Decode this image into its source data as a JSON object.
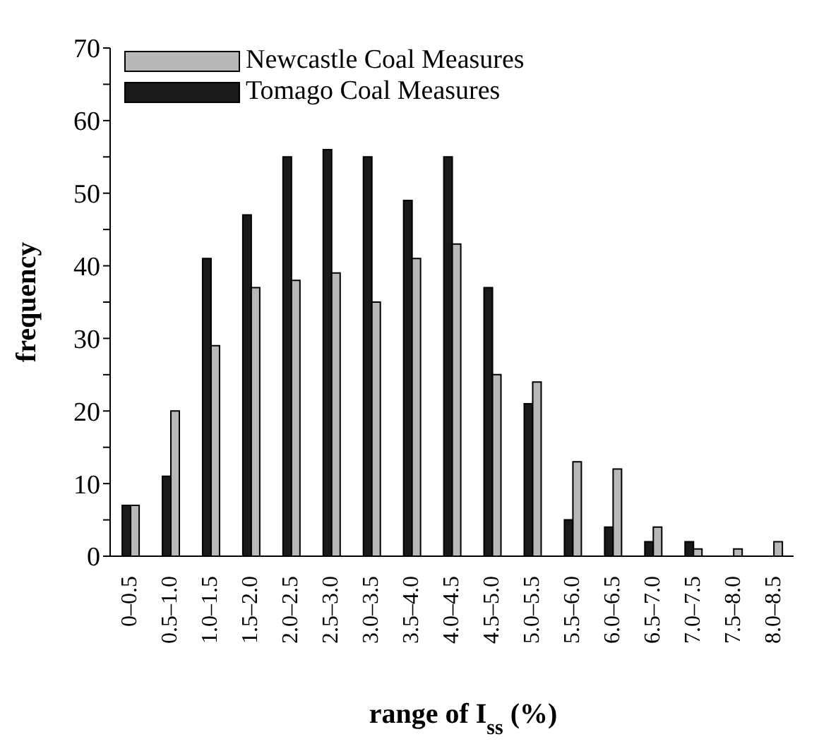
{
  "chart_data": {
    "type": "bar",
    "xlabel": "range of I$_{ss}$ (%)",
    "ylabel": "frequency",
    "categories": [
      "0–0.5",
      "0.5–1.0",
      "1.0–1.5",
      "1.5–2.0",
      "2.0–2.5",
      "2.5–3.0",
      "3.0–3.5",
      "3.5–4.0",
      "4.0–4.5",
      "4.5–5.0",
      "5.0–5.5",
      "5.5–6.0",
      "6.0–6.5",
      "6.5–7.0",
      "7.0–7.5",
      "7.5–8.0",
      "8.0–8.5"
    ],
    "series": [
      {
        "name": "Newcastle Coal Measures",
        "color": "#b8b8b8",
        "values": [
          7,
          20,
          29,
          37,
          38,
          39,
          35,
          41,
          43,
          25,
          24,
          13,
          12,
          4,
          1,
          1,
          2
        ]
      },
      {
        "name": "Tomago Coal Measures",
        "color": "#1a1a1a",
        "values": [
          7,
          11,
          41,
          47,
          55,
          56,
          55,
          49,
          55,
          37,
          21,
          5,
          4,
          2,
          2,
          null,
          null
        ]
      }
    ],
    "ylim": [
      0,
      70
    ],
    "yticks": [
      0,
      {
        "value": 5,
        "label": null
      },
      10,
      {
        "value": 15,
        "label": null
      },
      20,
      {
        "value": 25,
        "label": null
      },
      30,
      {
        "value": 35,
        "label": null
      },
      40,
      {
        "value": 45,
        "label": null
      },
      50,
      {
        "value": 55,
        "label": null
      },
      60,
      {
        "value": 65,
        "label": null
      },
      70
    ],
    "grid": false,
    "legend": "top left"
  }
}
